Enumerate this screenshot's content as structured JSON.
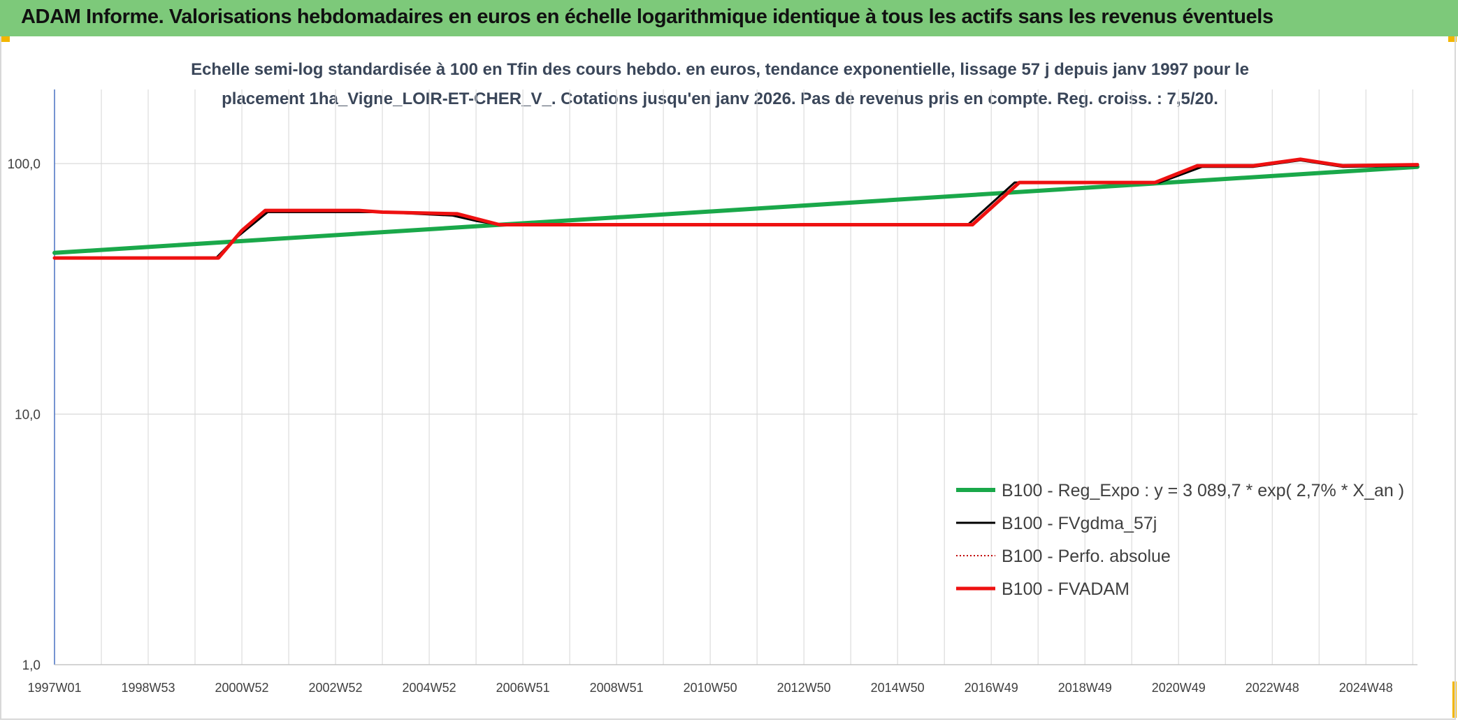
{
  "header": {
    "title": "ADAM Informe. Valorisations hebdomadaires en euros en échelle logarithmique identique à tous les actifs sans les revenus éventuels"
  },
  "chart_data": {
    "type": "line",
    "title_line1": "Echelle semi-log standardisée à 100 en Tfin des cours hebdo. en euros, tendance exponentielle, lissage 57 j depuis janv 1997 pour le",
    "title_line2": "placement 1ha_Vigne_LOIR-ET-CHER_V_. Cotations jusqu'en janv 2026. Pas de revenus pris en compte. Reg. croiss. : 7,5/20.",
    "y_scale": "log",
    "ylim": [
      1,
      200
    ],
    "xlim": [
      1997.0,
      2026.1
    ],
    "grid": true,
    "legend_position": "bottom-right",
    "y_ticks": [
      {
        "value": 1,
        "label": "1,0"
      },
      {
        "value": 10,
        "label": "10,0"
      },
      {
        "value": 100,
        "label": "100,0"
      }
    ],
    "x_ticks": [
      {
        "value": 1997.0,
        "label": "1997W01"
      },
      {
        "value": 1999.0,
        "label": "1998W53"
      },
      {
        "value": 2001.0,
        "label": "2000W52"
      },
      {
        "value": 2003.0,
        "label": "2002W52"
      },
      {
        "value": 2005.0,
        "label": "2004W52"
      },
      {
        "value": 2007.0,
        "label": "2006W51"
      },
      {
        "value": 2009.0,
        "label": "2008W51"
      },
      {
        "value": 2011.0,
        "label": "2010W50"
      },
      {
        "value": 2013.0,
        "label": "2012W50"
      },
      {
        "value": 2015.0,
        "label": "2014W50"
      },
      {
        "value": 2017.0,
        "label": "2016W49"
      },
      {
        "value": 2019.0,
        "label": "2018W49"
      },
      {
        "value": 2021.0,
        "label": "2020W49"
      },
      {
        "value": 2023.0,
        "label": "2022W48"
      },
      {
        "value": 2025.0,
        "label": "2024W48"
      }
    ],
    "minor_gridlines_x": [
      1998.0,
      2000.0,
      2002.0,
      2004.0,
      2006.0,
      2008.0,
      2010.0,
      2012.0,
      2014.0,
      2016.0,
      2018.0,
      2020.0,
      2022.0,
      2024.0,
      2026.0
    ],
    "series": [
      {
        "name": "B100 - Reg_Expo : y = 3 089,7 * exp( 2,7% *  X_an )",
        "color": "#1aa84a",
        "style": "solid",
        "x": [
          1997.0,
          2026.1
        ],
        "y": [
          44.0,
          97.0
        ]
      },
      {
        "name": "B100 - FVgdma_57j",
        "color": "#000000",
        "style": "solid",
        "x": [
          1997.0,
          2000.45,
          2000.85,
          2001.55,
          2004.0,
          2005.5,
          2006.0,
          2006.5,
          2016.5,
          2017.5,
          2020.6,
          2021.5,
          2022.6,
          2023.6,
          2024.5,
          2026.1
        ],
        "y": [
          42.0,
          42.0,
          50.0,
          64.0,
          64.0,
          62.0,
          59.0,
          57.0,
          57.0,
          84.0,
          84.0,
          97.0,
          97.0,
          103.0,
          97.0,
          98.0
        ]
      },
      {
        "name": "B100 - Perfo. absolue",
        "color": "#c00000",
        "style": "dotted",
        "x": [],
        "y": []
      },
      {
        "name": "B100 - FVADAM",
        "color": "#ee1111",
        "style": "solid",
        "x": [
          1997.0,
          2000.5,
          2001.0,
          2001.5,
          2003.5,
          2004.0,
          2005.6,
          2006.5,
          2016.6,
          2017.6,
          2020.5,
          2021.4,
          2022.6,
          2023.6,
          2024.5,
          2026.1
        ],
        "y": [
          42.0,
          42.0,
          54.0,
          65.0,
          65.0,
          64.0,
          63.0,
          57.0,
          57.0,
          84.0,
          84.0,
          98.0,
          98.0,
          104.0,
          98.0,
          99.0
        ]
      }
    ]
  }
}
